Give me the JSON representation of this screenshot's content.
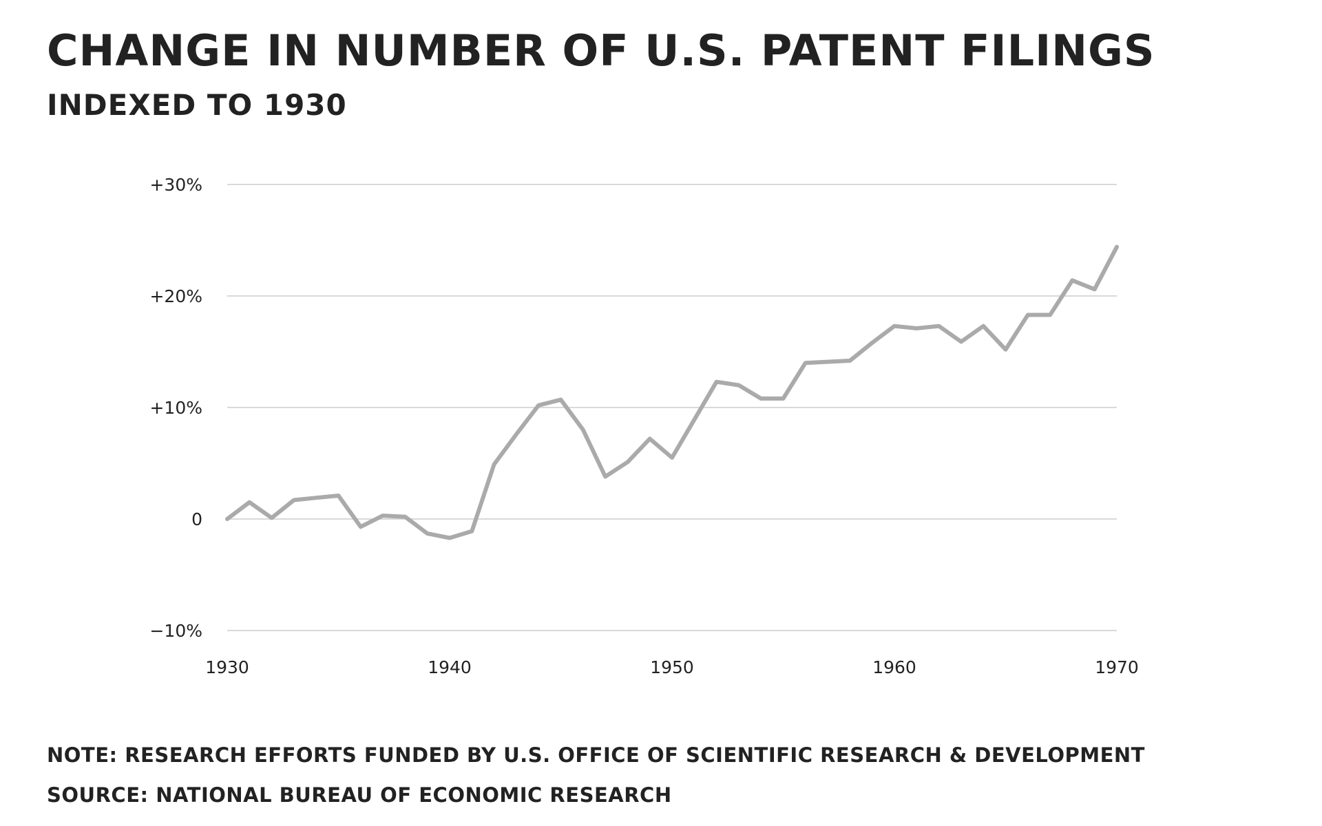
{
  "chart_data": {
    "type": "line",
    "title": "CHANGE IN NUMBER OF U.S. PATENT FILINGS",
    "subtitle": "INDEXED TO 1930",
    "xlabel": "",
    "ylabel": "",
    "x_ticks": [
      1930,
      1940,
      1950,
      1960,
      1970
    ],
    "x_tick_labels": [
      "1930",
      "1940",
      "1950",
      "1960",
      "1970"
    ],
    "y_ticks": [
      30,
      20,
      10,
      0,
      -10
    ],
    "y_tick_labels": [
      "+30%",
      "+20%",
      "+10%",
      "0",
      "−10%"
    ],
    "xlim": [
      1930,
      1970
    ],
    "ylim": [
      -10,
      30
    ],
    "grid": "horizontal",
    "legend": "none",
    "series": [
      {
        "color": "#aaaaaa",
        "x": [
          1930,
          1931,
          1932,
          1933,
          1934,
          1935,
          1936,
          1937,
          1938,
          1939,
          1940,
          1941,
          1942,
          1943,
          1944,
          1945,
          1946,
          1947,
          1948,
          1949,
          1950,
          1951,
          1952,
          1953,
          1954,
          1955,
          1956,
          1957,
          1958,
          1959,
          1960,
          1961,
          1962,
          1963,
          1964,
          1965,
          1966,
          1967,
          1968,
          1969,
          1970
        ],
        "values": [
          0,
          1.5,
          0.1,
          1.7,
          1.9,
          2.1,
          -0.7,
          0.3,
          0.2,
          -1.3,
          -1.7,
          -1.1,
          4.9,
          7.6,
          10.2,
          10.7,
          8.0,
          3.8,
          5.1,
          7.2,
          5.5,
          8.9,
          12.3,
          12.0,
          10.8,
          10.8,
          14.0,
          14.1,
          14.2,
          15.8,
          17.3,
          17.1,
          17.3,
          15.9,
          17.3,
          15.2,
          18.3,
          18.3,
          21.4,
          20.6,
          24.4
        ]
      }
    ],
    "gridline_color": "#d9d9d9",
    "text_color": "#222222"
  },
  "footer": {
    "note": "NOTE: RESEARCH EFFORTS FUNDED BY U.S. OFFICE OF SCIENTIFIC RESEARCH & DEVELOPMENT",
    "source": "SOURCE: NATIONAL BUREAU OF ECONOMIC RESEARCH"
  }
}
